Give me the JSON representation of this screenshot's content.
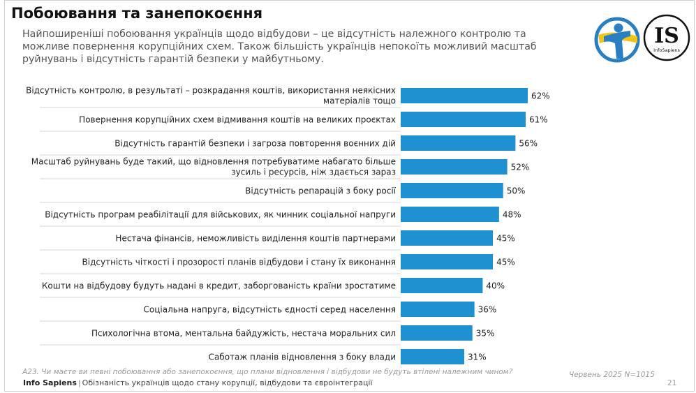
{
  "header": {
    "title": "Побоювання та занепокоєння",
    "subtitle": "Найпоширеніші побоювання українців щодо відбудови – це відсутність належного контролю та можливе повернення корупційних схем. Також більшість українців непокоїть можливий масштаб руйнувань і відсутність гарантій безпеки у майбутньому."
  },
  "logos": [
    {
      "name": "blue-figure-logo",
      "icon": "person-in-circle"
    },
    {
      "name": "infosapiens-logo",
      "letters": "IS",
      "caption": "InfoSapiens"
    }
  ],
  "colors": {
    "bar": "#1f91d1",
    "logo_blue": "#2a7fc3",
    "logo_yellow": "#f2c417"
  },
  "chart_data": {
    "type": "bar",
    "orientation": "horizontal",
    "title": "",
    "xlabel": "",
    "ylabel": "",
    "xlim": [
      0,
      100
    ],
    "grid": false,
    "legend": "none",
    "categories": [
      [
        "Відсутність контролю, в результаті – розкрадання коштів, використання неякісних",
        "матеріалів тощо"
      ],
      [
        "Повернення корупційних схем відмивання коштів на великих проєктах"
      ],
      [
        "Відсутність гарантій безпеки і загроза повторення воєнних дій"
      ],
      [
        "Масштаб руйнувань буде такий, що відновлення потребуватиме набагато більше",
        "зусиль і ресурсів, ніж здається зараз"
      ],
      [
        "Відсутність репарацій з боку росії"
      ],
      [
        "Відсутність програм реабілітації для військових, як чинник соціальної напруги"
      ],
      [
        "Нестача фінансів, неможливість виділення коштів партнерами"
      ],
      [
        "Відсутність чіткості і прозорості планів відбудови і стану їх виконання"
      ],
      [
        "Кошти на відбудову будуть надані в кредит, заборгованість країни зростатиме"
      ],
      [
        "Соціальна напруга, відсутність єдності серед населення"
      ],
      [
        "Психологічна втома, ментальна байдужість, нестача моральних сил"
      ],
      [
        "Саботаж планів відновлення з боку влади"
      ]
    ],
    "values": [
      62,
      61,
      56,
      52,
      50,
      48,
      45,
      45,
      40,
      36,
      35,
      31
    ],
    "value_labels": [
      "62%",
      "61%",
      "56%",
      "52%",
      "50%",
      "48%",
      "45%",
      "45%",
      "40%",
      "36%",
      "35%",
      "31%"
    ]
  },
  "footer": {
    "question": "A23. Чи маєте ви певні побоювання або занепокоєння, що плани відновлення і відбудови не будуть втілені належним чином?",
    "source": "Червень 2025 N=1015",
    "brand": "Info Sapiens",
    "separator": "|",
    "report": "Обізнаність українців щодо стану корупції, відбудови та євроінтеграції",
    "page": "21"
  }
}
